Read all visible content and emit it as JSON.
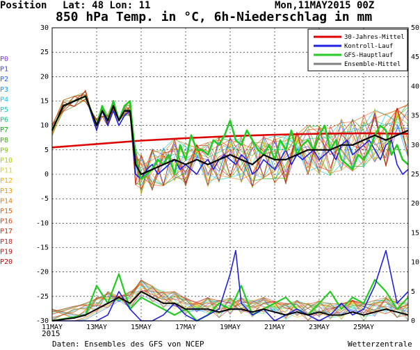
{
  "header": {
    "position": "Position",
    "lat_lon": "Lat: 48 Lon: 11",
    "run_date": "Mon,11MAY2015 00Z"
  },
  "footer": {
    "source": "Daten: Ensembles des GFS von NCEP",
    "credit": "Wetterzentrale",
    "year": "2015"
  },
  "chart_data": {
    "type": "line",
    "title": "850 hPa Temp. in °C, 6h-Niederschlag in mm",
    "x_labels": [
      "11MAY",
      "13MAY",
      "15MAY",
      "17MAY",
      "19MAY",
      "21MAY",
      "23MAY",
      "25MAY"
    ],
    "xlim": [
      0,
      64
    ],
    "x_label_steps": [
      0,
      8,
      16,
      24,
      32,
      40,
      48,
      56
    ],
    "ylim_left": [
      -30,
      30
    ],
    "yticks_left": [
      30,
      25,
      20,
      15,
      10,
      5,
      0,
      -5,
      -10,
      -15,
      -20,
      -25,
      -30
    ],
    "ylim_right": [
      0,
      50
    ],
    "yticks_right": [
      50,
      45,
      40,
      35,
      30,
      25,
      20,
      15,
      10,
      5,
      0
    ],
    "grid": true,
    "legend_position": "top-right",
    "member_labels": [
      "P0",
      "P1",
      "P2",
      "P3",
      "P4",
      "P5",
      "P6",
      "P7",
      "P8",
      "P9",
      "P10",
      "P11",
      "P12",
      "P13",
      "P14",
      "P15",
      "P16",
      "P17",
      "P18",
      "P19",
      "P20"
    ],
    "member_colors": [
      "#8a2be2",
      "#3a3aff",
      "#1e64ff",
      "#0a96ff",
      "#00c8ff",
      "#00d2c8",
      "#00c878",
      "#00b400",
      "#32b400",
      "#78c800",
      "#aad200",
      "#dcd200",
      "#f0b400",
      "#f09600",
      "#f07800",
      "#f05a00",
      "#e63c00",
      "#dc2800",
      "#d21e1e",
      "#c80a0a",
      "#c80000"
    ],
    "legend": [
      {
        "name": "30-Jahres-Mittel",
        "color": "#dd0000"
      },
      {
        "name": "Kontroll-Lauf",
        "color": "#2020e0"
      },
      {
        "name": "GFS-Hauptlauf",
        "color": "#22cc22"
      },
      {
        "name": "Ensemble-Mittel",
        "color": "#808080"
      }
    ],
    "climate_mean": {
      "x": [
        0,
        8,
        16,
        24,
        32,
        40,
        48,
        56,
        64
      ],
      "y": [
        5.5,
        6.2,
        6.9,
        7.4,
        7.8,
        8.1,
        8.3,
        8.4,
        8.3
      ]
    },
    "temp_control": {
      "x": [
        0,
        2,
        4,
        6,
        8,
        9,
        10,
        11,
        12,
        13,
        14,
        15,
        16,
        17,
        18,
        19,
        20,
        21,
        22,
        23,
        24,
        25,
        26,
        27,
        28,
        29,
        30,
        31,
        32,
        33,
        34,
        35,
        36,
        37,
        38,
        39,
        40,
        41,
        42,
        43,
        44,
        45,
        46,
        47,
        48,
        49,
        50,
        51,
        52,
        53,
        54,
        55,
        56,
        57,
        58,
        59,
        60,
        61,
        62,
        63,
        64
      ],
      "y": [
        9,
        14,
        15,
        16,
        9,
        13,
        10,
        13,
        10,
        12,
        13,
        0,
        -1,
        1,
        2,
        0,
        1,
        2,
        3,
        1,
        2,
        1,
        0,
        2,
        3,
        1,
        3,
        4,
        3,
        2,
        4,
        3,
        0,
        1,
        3,
        2,
        1,
        3,
        5,
        2,
        4,
        3,
        4,
        5,
        3,
        4,
        5,
        3,
        6,
        7,
        4,
        5,
        6,
        7,
        5,
        3,
        6,
        7,
        2,
        0,
        1
      ]
    },
    "temp_main": {
      "x": [
        0,
        2,
        4,
        6,
        8,
        9,
        10,
        11,
        12,
        13,
        14,
        15,
        16,
        17,
        18,
        19,
        20,
        21,
        22,
        23,
        24,
        25,
        26,
        27,
        28,
        29,
        30,
        31,
        32,
        33,
        34,
        35,
        36,
        37,
        38,
        39,
        40,
        41,
        42,
        43,
        44,
        45,
        46,
        47,
        48,
        49,
        50,
        51,
        52,
        53,
        54,
        55,
        56,
        57,
        58,
        59,
        60,
        61,
        62,
        63,
        64
      ],
      "y": [
        9,
        14,
        15,
        16,
        10,
        14,
        11,
        15,
        11,
        14,
        15,
        3,
        -1,
        0,
        1,
        3,
        2,
        4,
        0,
        6,
        3,
        8,
        5,
        5,
        4,
        7,
        6,
        8,
        11,
        7,
        6,
        9,
        7,
        5,
        4,
        6,
        3,
        7,
        5,
        9,
        4,
        6,
        7,
        5,
        8,
        10,
        5,
        7,
        3,
        2,
        1,
        4,
        3,
        5,
        8,
        10,
        9,
        4,
        6,
        3,
        2
      ]
    },
    "temp_ens_mean": {
      "x": [
        0,
        2,
        4,
        6,
        8,
        9,
        10,
        11,
        12,
        13,
        14,
        15,
        16,
        18,
        20,
        22,
        24,
        26,
        28,
        30,
        32,
        34,
        36,
        38,
        40,
        42,
        44,
        46,
        48,
        50,
        52,
        54,
        56,
        58,
        60,
        62,
        64
      ],
      "y": [
        9,
        14,
        15,
        16,
        10,
        13,
        11,
        14,
        11,
        13,
        13,
        2,
        0,
        1,
        2,
        3,
        2,
        3,
        2,
        3,
        4,
        3,
        2,
        4,
        3,
        3,
        4,
        5,
        5,
        5,
        6,
        6,
        7,
        8,
        7,
        8,
        9
      ]
    },
    "precip_control": {
      "x": [
        0,
        8,
        10,
        12,
        14,
        16,
        18,
        20,
        22,
        24,
        26,
        28,
        30,
        32,
        33,
        34,
        36,
        38,
        40,
        42,
        44,
        46,
        48,
        50,
        52,
        54,
        56,
        58,
        60,
        62,
        64
      ],
      "y": [
        0,
        0,
        1,
        5,
        2,
        0,
        0,
        1,
        3,
        1,
        0,
        1,
        2,
        8,
        12,
        3,
        1,
        2,
        0,
        1,
        2,
        1,
        0,
        1,
        3,
        1,
        2,
        6,
        12,
        3,
        5
      ]
    },
    "precip_main": {
      "x": [
        0,
        6,
        8,
        10,
        12,
        14,
        16,
        18,
        20,
        22,
        24,
        26,
        28,
        30,
        32,
        34,
        36,
        38,
        40,
        42,
        44,
        46,
        48,
        50,
        52,
        54,
        56,
        58,
        60,
        62,
        64
      ],
      "y": [
        0,
        1,
        6,
        3,
        8,
        2,
        4,
        3,
        2,
        1,
        2,
        0,
        1,
        3,
        2,
        6,
        1,
        2,
        3,
        4,
        2,
        1,
        3,
        5,
        2,
        4,
        3,
        7,
        5,
        2,
        4
      ]
    },
    "precip_ens_mean": {
      "x": [
        0,
        4,
        6,
        8,
        10,
        12,
        14,
        16,
        18,
        20,
        22,
        24,
        26,
        28,
        30,
        32,
        34,
        36,
        38,
        40,
        42,
        44,
        46,
        48,
        50,
        52,
        54,
        56,
        58,
        60,
        62,
        64
      ],
      "y": [
        0,
        0.5,
        1,
        2,
        3,
        4,
        3,
        5,
        4,
        3,
        3,
        2,
        2,
        2,
        1.5,
        2,
        2,
        1.5,
        2,
        1.5,
        1,
        1.5,
        1,
        1.5,
        1,
        1,
        1.5,
        1,
        1.5,
        2,
        1.5,
        1
      ]
    }
  }
}
